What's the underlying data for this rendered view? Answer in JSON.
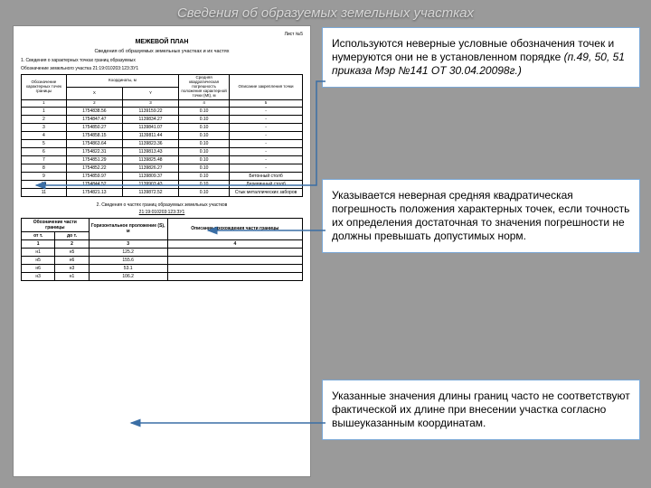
{
  "slide_title": "Сведения об образуемых земельных участках",
  "doc": {
    "sheet": "Лист №5",
    "title": "МЕЖЕВОЙ ПЛАН",
    "subtitle": "Сведения об образуемых земельных участках и их частях",
    "section1": "1. Сведения о характерных точках границ образуемых",
    "cadastral": "Обозначение земельного участка 21:19:010203:123:ЗУ1",
    "head": {
      "c1": "Обозначение характерных точек границы",
      "c2": "Координаты, м",
      "c2x": "X",
      "c2y": "Y",
      "c3": "Средняя квадратическая погрешность положения характерной точки (Mt), м",
      "c4": "Описание закрепления точки"
    },
    "numrow": {
      "a": "1",
      "b": "2",
      "c": "3",
      "d": "4",
      "e": "5"
    },
    "rows": [
      {
        "p": "1",
        "x": "1754838.56",
        "y": "1139159.22",
        "m": "0.10",
        "d": "-"
      },
      {
        "p": "2",
        "x": "1754847.47",
        "y": "1139834.27",
        "m": "0.10",
        "d": "-"
      },
      {
        "p": "3",
        "x": "1754850.27",
        "y": "1139841.07",
        "m": "0.10",
        "d": "-"
      },
      {
        "p": "4",
        "x": "1754858.15",
        "y": "1139811.44",
        "m": "0.10",
        "d": "-"
      },
      {
        "p": "5",
        "x": "1754863.64",
        "y": "1139823.36",
        "m": "0.10",
        "d": "-"
      },
      {
        "p": "6",
        "x": "1754822.31",
        "y": "1139813.43",
        "m": "0.10",
        "d": "-"
      },
      {
        "p": "7",
        "x": "1754851.29",
        "y": "1139825.48",
        "m": "0.10",
        "d": "-"
      },
      {
        "p": "8",
        "x": "1754852.22",
        "y": "1139826.27",
        "m": "0.10",
        "d": "-"
      },
      {
        "p": "9",
        "x": "1754859.97",
        "y": "1139809.37",
        "m": "0.10",
        "d": "Бетонный столб"
      },
      {
        "p": "10",
        "x": "1754844.52",
        "y": "1139903.43",
        "m": "0.10",
        "d": "Деревянный столб"
      },
      {
        "p": "11",
        "x": "1754821.13",
        "y": "1139872.52",
        "m": "0.10",
        "d": "Стык металлических заборов"
      }
    ],
    "section2": "2. Сведения о частях границ образуемых земельных участков",
    "cadastral2": "21:19:010203:123:ЗУ1",
    "head2": {
      "c1": "Обозначение части границы",
      "c1a": "от т.",
      "c1b": "до т.",
      "c2": "Горизонтальное проложение (S), м",
      "c3": "Описание прохождения части границы"
    },
    "numrow2": {
      "a": "1",
      "b": "2",
      "c": "3",
      "d": "4"
    },
    "rows2": [
      {
        "f": "н1",
        "t": "н5",
        "s": "125.2",
        "d": ""
      },
      {
        "f": "н5",
        "t": "н6",
        "s": "155.6",
        "d": ""
      },
      {
        "f": "н6",
        "t": "н3",
        "s": "53.1",
        "d": ""
      },
      {
        "f": "н3",
        "t": "н1",
        "s": "106.2",
        "d": ""
      }
    ]
  },
  "notes": {
    "n1a": "Используются неверные условные обозначения точек и нумеруются они не в установленном порядке ",
    "n1b": "(п.49, 50, 51 приказа Мэр №141 ОТ 30.04.20098г.)",
    "n2": "Указывается неверная средняя квадратическая погрешность положения характерных точек, если точность их определения достаточная то значения погрешности не должны превышать допустимых норм.",
    "n3": "Указанные значения длины границ часто не соответствуют фактической их длине при внесении участка согласно вышеуказанным координатам."
  },
  "colors": {
    "note_border": "#7ba8d6",
    "arrow": "#3a6ea5"
  }
}
